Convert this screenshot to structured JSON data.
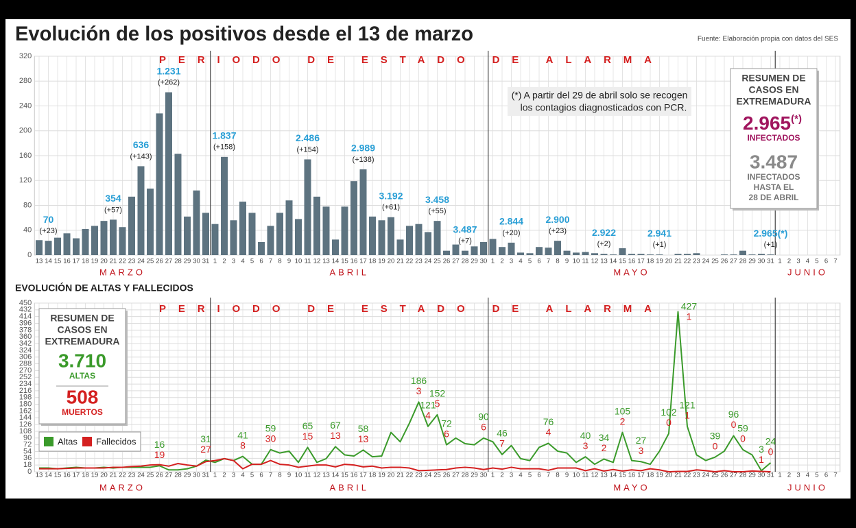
{
  "chart_data": [
    {
      "type": "bar",
      "title": "Evolución de los positivos desde el 13 de marzo",
      "source": "Fuente: Elaboración propia con datos del SES",
      "banner": "PERIODO DE ESTADO DE ALARMA",
      "months": [
        "MARZO",
        "ABRIL",
        "MAYO",
        "JUNIO"
      ],
      "categories": [
        "13",
        "14",
        "15",
        "16",
        "17",
        "18",
        "19",
        "20",
        "21",
        "22",
        "23",
        "24",
        "25",
        "26",
        "27",
        "28",
        "29",
        "30",
        "31",
        "1",
        "2",
        "3",
        "4",
        "5",
        "6",
        "7",
        "8",
        "9",
        "10",
        "11",
        "12",
        "13",
        "14",
        "15",
        "16",
        "17",
        "18",
        "19",
        "20",
        "21",
        "22",
        "23",
        "24",
        "25",
        "26",
        "27",
        "28",
        "29",
        "30",
        "1",
        "2",
        "3",
        "4",
        "5",
        "6",
        "7",
        "8",
        "9",
        "10",
        "11",
        "12",
        "13",
        "14",
        "15",
        "16",
        "17",
        "18",
        "19",
        "20",
        "21",
        "22",
        "23",
        "24",
        "25",
        "26",
        "27",
        "28",
        "29",
        "30",
        "31",
        "1",
        "2",
        "3",
        "4",
        "5",
        "6",
        "7"
      ],
      "values": [
        24,
        23,
        28,
        35,
        27,
        42,
        47,
        55,
        57,
        45,
        94,
        143,
        107,
        228,
        262,
        163,
        62,
        104,
        68,
        50,
        158,
        56,
        86,
        68,
        21,
        47,
        68,
        88,
        58,
        154,
        94,
        78,
        25,
        78,
        119,
        138,
        62,
        56,
        61,
        25,
        47,
        50,
        37,
        55,
        7,
        17,
        7,
        14,
        21,
        26,
        13,
        20,
        4,
        3,
        13,
        12,
        23,
        7,
        4,
        5,
        3,
        2,
        1,
        11,
        2,
        2,
        1,
        1,
        0,
        2,
        2,
        3,
        0,
        0,
        1,
        1,
        7,
        1,
        2,
        1,
        null,
        null,
        null,
        null,
        null,
        null,
        null
      ],
      "total_labels": [
        null,
        "70",
        null,
        null,
        null,
        null,
        null,
        null,
        "354",
        null,
        null,
        "636",
        null,
        null,
        "1.231",
        null,
        null,
        null,
        null,
        null,
        "1.837",
        null,
        null,
        null,
        null,
        null,
        null,
        null,
        null,
        "2.486",
        null,
        null,
        null,
        null,
        null,
        "2.989",
        null,
        null,
        "3.192",
        null,
        null,
        null,
        null,
        "3.458",
        null,
        null,
        "3.487",
        null,
        null,
        null,
        null,
        "2.844",
        null,
        null,
        null,
        null,
        "2.900",
        null,
        null,
        null,
        null,
        "2.922",
        null,
        null,
        null,
        null,
        null,
        "2.941",
        null,
        null,
        null,
        null,
        null,
        null,
        null,
        null,
        null,
        null,
        null,
        "2.965(*)",
        null,
        null,
        null,
        null,
        null,
        null,
        null
      ],
      "value_labels": [
        null,
        "(+23)",
        null,
        null,
        null,
        null,
        null,
        null,
        "(+57)",
        null,
        null,
        "(+143)",
        null,
        null,
        "(+262)",
        null,
        null,
        null,
        null,
        null,
        "(+158)",
        null,
        null,
        null,
        null,
        null,
        null,
        null,
        null,
        "(+154)",
        null,
        null,
        null,
        null,
        null,
        "(+138)",
        null,
        null,
        "(+61)",
        null,
        null,
        null,
        null,
        "(+55)",
        null,
        null,
        "(+7)",
        null,
        null,
        null,
        null,
        "(+20)",
        null,
        null,
        null,
        null,
        "(+23)",
        null,
        null,
        null,
        null,
        "(+2)",
        null,
        null,
        null,
        null,
        null,
        "(+1)",
        null,
        null,
        null,
        null,
        null,
        null,
        null,
        null,
        null,
        null,
        null,
        "(+1)",
        null,
        null,
        null,
        null,
        null,
        null,
        null
      ],
      "color": "#5d7380",
      "label_color": "#2a9fd6",
      "ylim": [
        0,
        320
      ],
      "yticks": [
        0,
        40,
        80,
        120,
        160,
        200,
        240,
        280,
        320
      ],
      "grid": true,
      "note": [
        "(*) A partir del 29 de abril solo se recogen",
        "los contagios diagnosticados con PCR."
      ],
      "summary": {
        "heading": [
          "RESUMEN DE",
          "CASOS EN",
          "EXTREMADURA"
        ],
        "main": "2.965",
        "main_note": "(*)",
        "main_caption": "INFECTADOS",
        "secondary": "3.487",
        "secondary_caption": [
          "INFECTADOS",
          "HASTA EL",
          "28 DE ABRIL"
        ]
      }
    },
    {
      "type": "line",
      "title": "EVOLUCIÓN DE ALTAS Y FALLECIDOS",
      "banner": "PERIODO DE ESTADO DE ALARMA",
      "months": [
        "MARZO",
        "ABRIL",
        "MAYO",
        "JUNIO"
      ],
      "categories": [
        "13",
        "14",
        "15",
        "16",
        "17",
        "18",
        "19",
        "20",
        "21",
        "22",
        "23",
        "24",
        "25",
        "26",
        "27",
        "28",
        "29",
        "30",
        "31",
        "1",
        "2",
        "3",
        "4",
        "5",
        "6",
        "7",
        "8",
        "9",
        "10",
        "11",
        "12",
        "13",
        "14",
        "15",
        "16",
        "17",
        "18",
        "19",
        "20",
        "21",
        "22",
        "23",
        "24",
        "25",
        "26",
        "27",
        "28",
        "29",
        "30",
        "1",
        "2",
        "3",
        "4",
        "5",
        "6",
        "7",
        "8",
        "9",
        "10",
        "11",
        "12",
        "13",
        "14",
        "15",
        "16",
        "17",
        "18",
        "19",
        "20",
        "21",
        "22",
        "23",
        "24",
        "25",
        "26",
        "27",
        "28",
        "29",
        "30",
        "31",
        "1",
        "2",
        "3",
        "4",
        "5",
        "6",
        "7"
      ],
      "series": [
        {
          "name": "Altas",
          "color": "#3a9a2a",
          "values": [
            10,
            10,
            8,
            10,
            12,
            10,
            10,
            12,
            10,
            12,
            12,
            12,
            12,
            16,
            5,
            5,
            8,
            15,
            31,
            25,
            35,
            30,
            41,
            20,
            20,
            59,
            50,
            55,
            25,
            65,
            25,
            35,
            67,
            45,
            42,
            58,
            40,
            42,
            105,
            80,
            130,
            186,
            121,
            152,
            72,
            90,
            75,
            72,
            90,
            80,
            46,
            70,
            35,
            30,
            65,
            76,
            55,
            50,
            25,
            40,
            20,
            34,
            25,
            105,
            30,
            27,
            20,
            55,
            102,
            427,
            121,
            45,
            30,
            39,
            55,
            96,
            59,
            45,
            3,
            24,
            null,
            null,
            null,
            null,
            null,
            null,
            null
          ],
          "value_labels": [
            null,
            null,
            null,
            null,
            null,
            null,
            null,
            null,
            null,
            null,
            null,
            null,
            null,
            "16",
            null,
            null,
            null,
            null,
            "31",
            null,
            null,
            null,
            "41",
            null,
            null,
            "59",
            null,
            null,
            null,
            "65",
            null,
            null,
            "67",
            null,
            null,
            "58",
            null,
            null,
            null,
            null,
            null,
            "186",
            "121",
            "152",
            "72",
            null,
            null,
            null,
            "90",
            null,
            "46",
            null,
            null,
            null,
            null,
            "76",
            null,
            null,
            null,
            "40",
            null,
            "34",
            null,
            "105",
            null,
            "27",
            null,
            null,
            "102",
            "427",
            "121",
            null,
            null,
            "39",
            null,
            "96",
            "59",
            null,
            "3",
            "24",
            null,
            null,
            null,
            null,
            null,
            null,
            null
          ]
        },
        {
          "name": "Fallecidos",
          "color": "#d42020",
          "values": [
            8,
            8,
            8,
            9,
            10,
            10,
            10,
            10,
            12,
            12,
            14,
            15,
            18,
            19,
            15,
            22,
            18,
            15,
            27,
            30,
            35,
            30,
            8,
            20,
            20,
            30,
            20,
            18,
            12,
            15,
            18,
            18,
            13,
            20,
            18,
            13,
            15,
            10,
            12,
            12,
            10,
            3,
            4,
            5,
            6,
            10,
            12,
            10,
            6,
            10,
            7,
            12,
            8,
            8,
            8,
            4,
            10,
            10,
            10,
            3,
            8,
            2,
            6,
            2,
            5,
            3,
            8,
            5,
            0,
            1,
            1,
            5,
            3,
            0,
            3,
            0,
            0,
            2,
            1,
            0,
            null,
            null,
            null,
            null,
            null,
            null,
            null
          ],
          "value_labels": [
            null,
            null,
            null,
            null,
            null,
            null,
            null,
            null,
            null,
            null,
            null,
            null,
            null,
            "19",
            null,
            null,
            null,
            null,
            "27",
            null,
            null,
            null,
            "8",
            null,
            null,
            "30",
            null,
            null,
            null,
            "15",
            null,
            null,
            "13",
            null,
            null,
            "13",
            null,
            null,
            null,
            null,
            null,
            "3",
            "4",
            "5",
            "6",
            null,
            null,
            null,
            "6",
            null,
            "7",
            null,
            null,
            null,
            null,
            "4",
            null,
            null,
            null,
            "3",
            null,
            "2",
            null,
            "2",
            null,
            "3",
            null,
            null,
            "0",
            "1",
            "1",
            null,
            null,
            "0",
            null,
            "0",
            "0",
            null,
            "1",
            "0",
            null,
            null,
            null,
            null,
            null,
            null,
            null
          ]
        }
      ],
      "ylim": [
        0,
        450
      ],
      "yticks": [
        0,
        18,
        36,
        54,
        72,
        90,
        108,
        126,
        144,
        162,
        180,
        198,
        216,
        234,
        252,
        270,
        288,
        306,
        324,
        342,
        360,
        378,
        396,
        414,
        432,
        450
      ],
      "grid": true,
      "summary": {
        "heading": [
          "RESUMEN DE",
          "CASOS EN",
          "EXTREMADURA"
        ],
        "main": "3.710",
        "main_caption": "ALTAS",
        "secondary": "508",
        "secondary_caption": "MUERTOS"
      }
    }
  ]
}
